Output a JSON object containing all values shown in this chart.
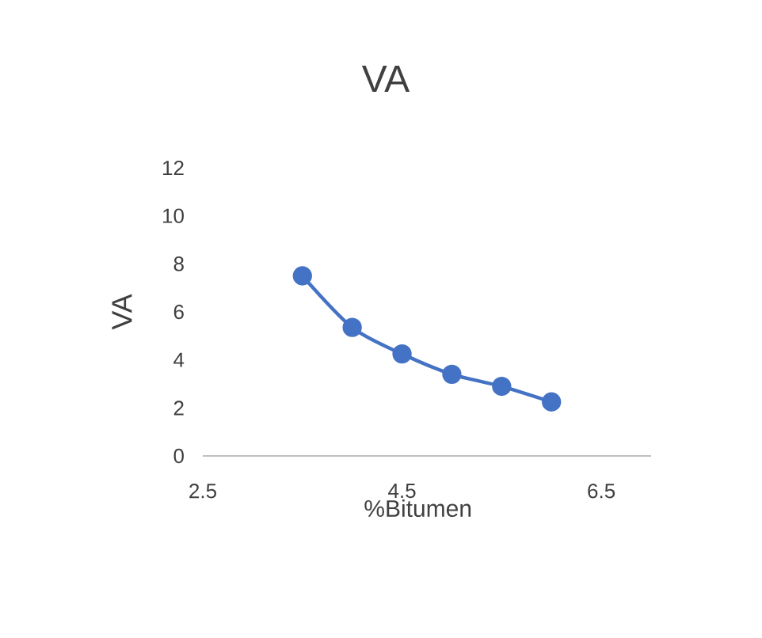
{
  "chart_data": {
    "type": "line",
    "title": "VA",
    "xlabel": "%Bitumen",
    "ylabel": "VA",
    "x": [
      3.5,
      4.0,
      4.5,
      5.0,
      5.5,
      6.0
    ],
    "series": [
      {
        "color": "#4472c4",
        "values": [
          7.5,
          5.35,
          4.25,
          3.4,
          2.9,
          2.25
        ]
      }
    ],
    "xlim": [
      2.5,
      7.0
    ],
    "xticks": [
      2.5,
      4.5,
      6.5
    ],
    "ylim": [
      0,
      12
    ],
    "yticks": [
      0,
      2,
      4,
      6,
      8,
      10,
      12
    ],
    "marker": "circle",
    "line_style": "solid"
  }
}
